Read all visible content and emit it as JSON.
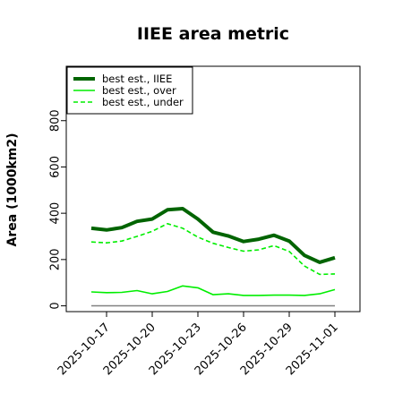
{
  "chart_data": {
    "type": "line",
    "title": "IIEE area metric",
    "xlabel": "",
    "ylabel": "Area (1000km2)",
    "ylim": [
      -25,
      1035
    ],
    "yticks": [
      0,
      200,
      400,
      600,
      800
    ],
    "x": [
      "2025-10-16",
      "2025-10-17",
      "2025-10-18",
      "2025-10-19",
      "2025-10-20",
      "2025-10-21",
      "2025-10-22",
      "2025-10-23",
      "2025-10-24",
      "2025-10-25",
      "2025-10-26",
      "2025-10-27",
      "2025-10-28",
      "2025-10-29",
      "2025-10-30",
      "2025-10-31",
      "2025-11-01"
    ],
    "xticks": [
      "2025-10-17",
      "2025-10-20",
      "2025-10-23",
      "2025-10-26",
      "2025-10-29",
      "2025-11-01"
    ],
    "legend_position": "top-left",
    "grid": false,
    "series": [
      {
        "name": "best est., IIEE",
        "color": "#006400",
        "style": "solid",
        "width": "thick",
        "values": [
          335,
          328,
          338,
          365,
          375,
          415,
          420,
          375,
          318,
          302,
          278,
          288,
          305,
          280,
          218,
          188,
          208
        ]
      },
      {
        "name": "best est., over",
        "color": "#00ee00",
        "style": "solid",
        "width": "thin",
        "values": [
          60,
          57,
          58,
          66,
          52,
          62,
          86,
          78,
          48,
          52,
          45,
          45,
          46,
          46,
          45,
          52,
          70
        ]
      },
      {
        "name": "best est., under",
        "color": "#00ee00",
        "style": "dashed",
        "width": "thin",
        "values": [
          276,
          272,
          280,
          300,
          322,
          355,
          335,
          297,
          270,
          252,
          236,
          242,
          260,
          235,
          172,
          136,
          138
        ]
      }
    ],
    "zero_line": {
      "value": 0,
      "color": "#808080"
    }
  }
}
